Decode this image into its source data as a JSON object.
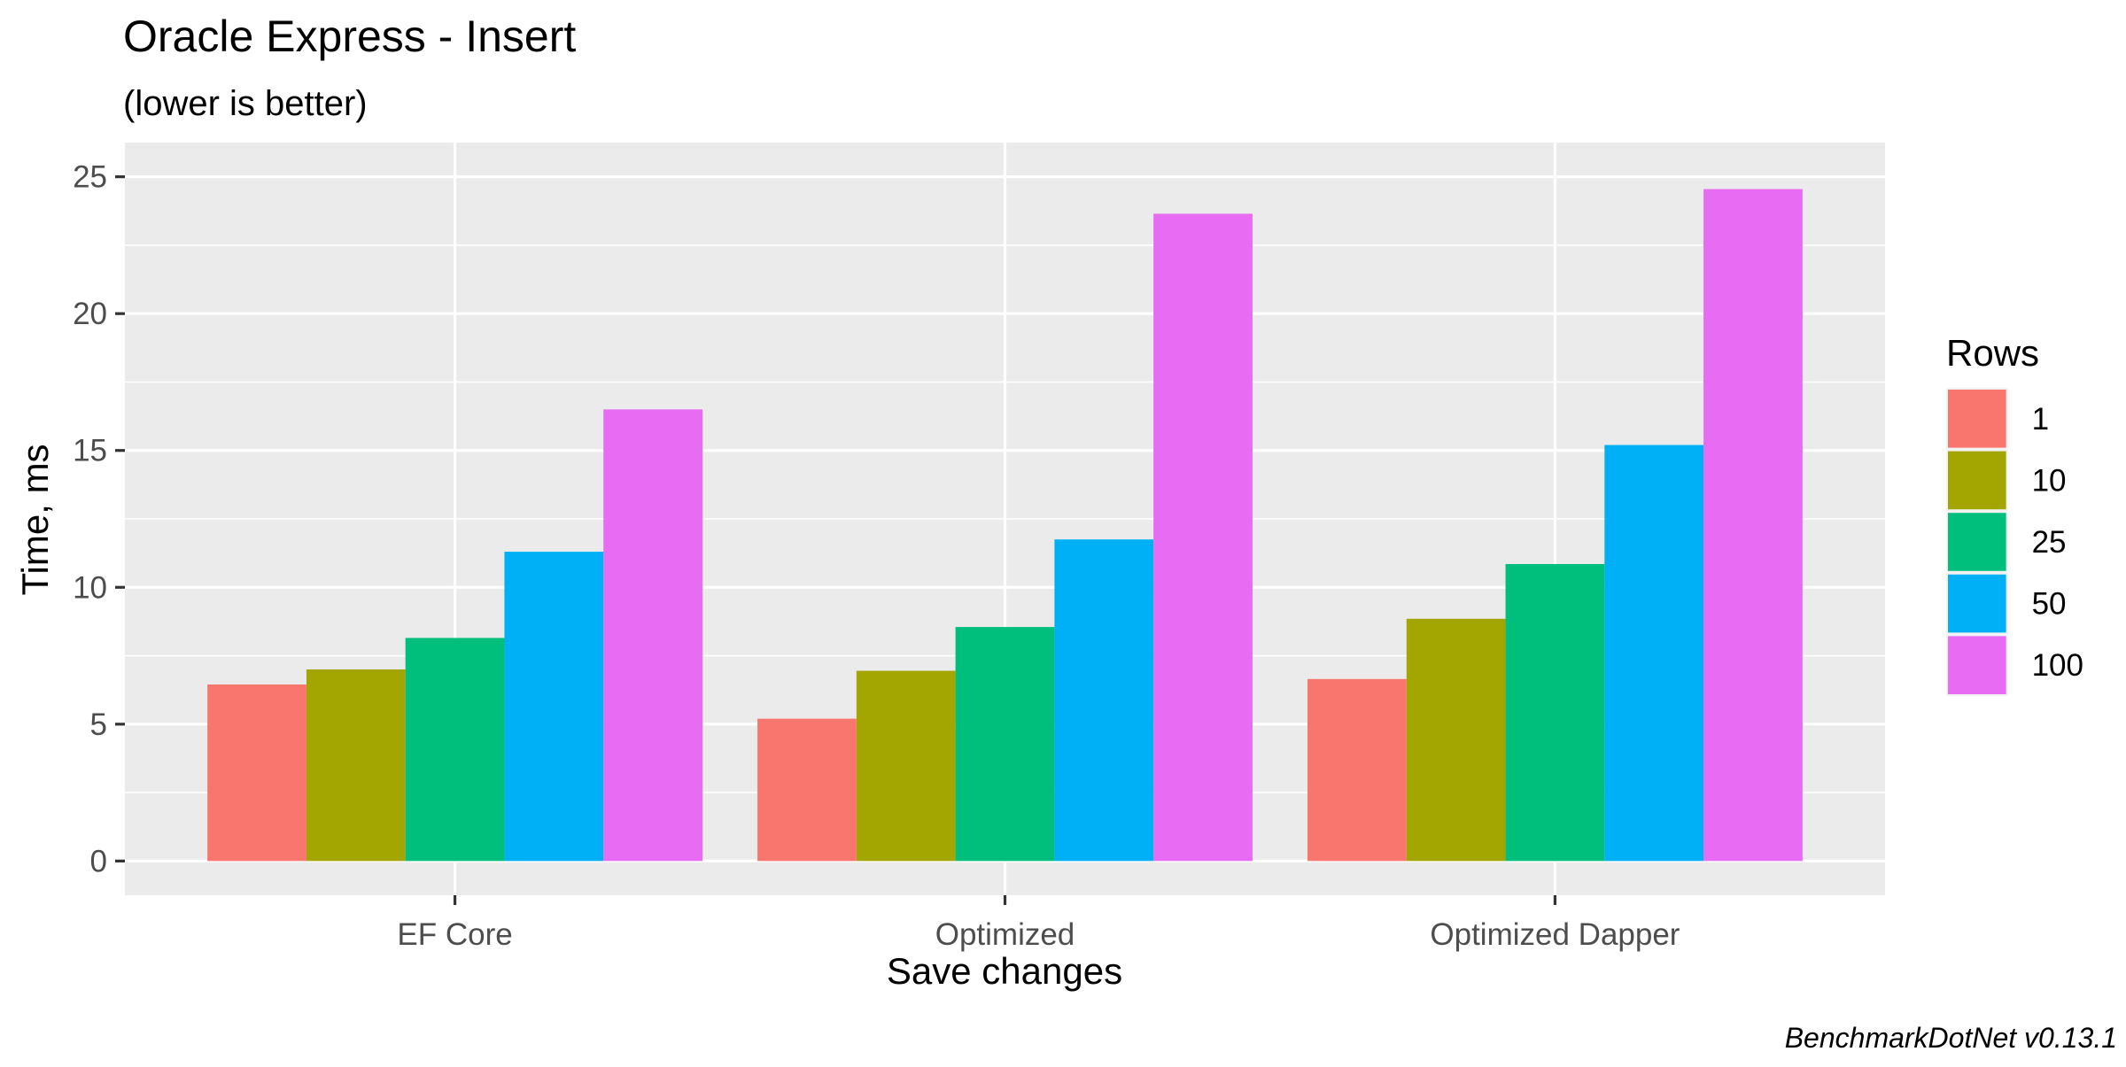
{
  "chart_data": {
    "type": "bar",
    "title": "Oracle Express - Insert",
    "subtitle": "(lower is better)",
    "xlabel": "Save changes",
    "ylabel": "Time, ms",
    "caption": "BenchmarkDotNet v0.13.1",
    "categories": [
      "EF Core",
      "Optimized",
      "Optimized Dapper"
    ],
    "ylim": [
      -1.25,
      26.25
    ],
    "yticks": [
      0,
      5,
      10,
      15,
      20,
      25
    ],
    "ytick_labels": [
      "0",
      "5",
      "10",
      "15",
      "20",
      "25"
    ],
    "grid": true,
    "legend": {
      "title": "Rows",
      "position": "right"
    },
    "series": [
      {
        "name": "1",
        "color": "#F8766D",
        "values": [
          6.45,
          5.2,
          6.65
        ]
      },
      {
        "name": "10",
        "color": "#A3A500",
        "values": [
          7.0,
          6.95,
          8.85
        ]
      },
      {
        "name": "25",
        "color": "#00BF7D",
        "values": [
          8.15,
          8.55,
          10.85
        ]
      },
      {
        "name": "50",
        "color": "#00B0F6",
        "values": [
          11.3,
          11.75,
          15.2
        ]
      },
      {
        "name": "100",
        "color": "#E76BF3",
        "values": [
          16.5,
          23.65,
          24.55
        ]
      }
    ]
  }
}
